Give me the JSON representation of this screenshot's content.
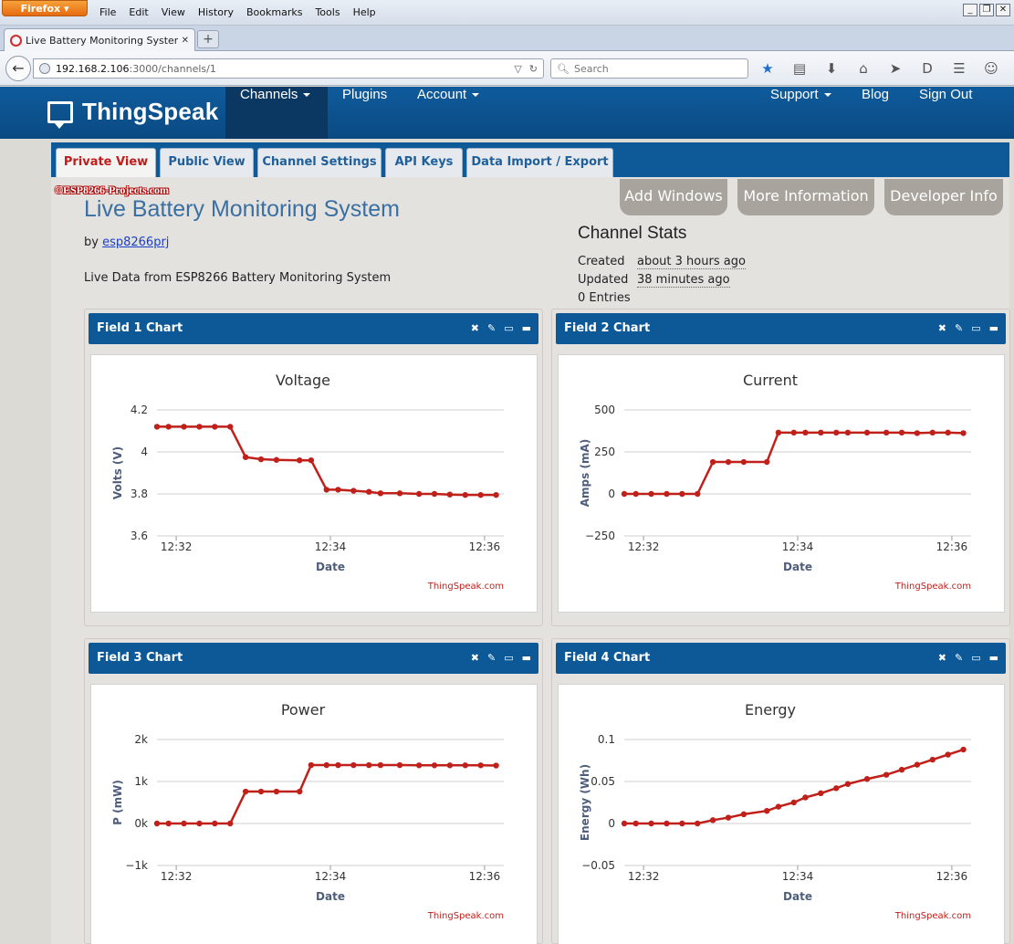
{
  "browser": {
    "app_button": "Firefox",
    "menu": [
      "File",
      "Edit",
      "View",
      "History",
      "Bookmarks",
      "Tools",
      "Help"
    ],
    "tab_title": "Live Battery Monitoring System -...",
    "new_tab_label": "+",
    "url_host": "192.168.2.106",
    "url_path": ":3000/channels/1",
    "search_placeholder": "Search"
  },
  "site": {
    "logo": "ThingSpeak",
    "nav": {
      "channels": "Channels",
      "plugins": "Plugins",
      "account": "Account",
      "support": "Support",
      "blog": "Blog",
      "signout": "Sign Out"
    },
    "subtabs": [
      "Private View",
      "Public View",
      "Channel Settings",
      "API Keys",
      "Data Import / Export"
    ]
  },
  "channel": {
    "watermark": "©ESP8266-Projects.com",
    "title": "Live Battery Monitoring System",
    "by_prefix": "by",
    "author": "esp8266prj",
    "description": "Live Data from ESP8266 Battery Monitoring System",
    "buttons": {
      "add_windows": "Add Windows",
      "more_info": "More Information",
      "developer_info": "Developer Info"
    },
    "stats": {
      "title": "Channel Stats",
      "created_label": "Created",
      "created_value": "about 3 hours ago",
      "updated_label": "Updated",
      "updated_value": "38 minutes ago",
      "entries": "0 Entries"
    }
  },
  "chart_data": [
    {
      "type": "line",
      "panel_title": "Field 1 Chart",
      "title": "Voltage",
      "xlabel": "Date",
      "ylabel": "Volts (V)",
      "credit": "ThingSpeak.com",
      "color": "#c0201a",
      "ylim": [
        3.6,
        4.2
      ],
      "yticks": [
        3.6,
        3.8,
        4.0,
        4.2
      ],
      "ytick_labels": [
        "3.6",
        "3.8",
        "4",
        "4.2"
      ],
      "xlim": [
        0,
        4.5
      ],
      "xticks": [
        0.25,
        2.25,
        4.25
      ],
      "xtick_labels": [
        "12:32",
        "12:34",
        "12:36"
      ],
      "x": [
        0,
        0.15,
        0.35,
        0.55,
        0.75,
        0.95,
        1.15,
        1.35,
        1.55,
        1.85,
        2.0,
        2.2,
        2.35,
        2.55,
        2.75,
        2.9,
        3.15,
        3.4,
        3.6,
        3.8,
        4.0,
        4.2,
        4.4
      ],
      "values": [
        4.12,
        4.12,
        4.12,
        4.12,
        4.12,
        4.12,
        3.975,
        3.965,
        3.962,
        3.96,
        3.96,
        3.82,
        3.82,
        3.815,
        3.81,
        3.803,
        3.803,
        3.8,
        3.8,
        3.797,
        3.795,
        3.795,
        3.795
      ]
    },
    {
      "type": "line",
      "panel_title": "Field 2 Chart",
      "title": "Current",
      "xlabel": "Date",
      "ylabel": "Amps (mA)",
      "credit": "ThingSpeak.com",
      "color": "#c0201a",
      "ylim": [
        -250,
        500
      ],
      "yticks": [
        -250,
        0,
        250,
        500
      ],
      "ytick_labels": [
        "−250",
        "0",
        "250",
        "500"
      ],
      "xlim": [
        0,
        4.5
      ],
      "xticks": [
        0.25,
        2.25,
        4.25
      ],
      "xtick_labels": [
        "12:32",
        "12:34",
        "12:36"
      ],
      "x": [
        0,
        0.15,
        0.35,
        0.55,
        0.75,
        0.95,
        1.15,
        1.35,
        1.55,
        1.85,
        2.0,
        2.2,
        2.35,
        2.55,
        2.75,
        2.9,
        3.15,
        3.4,
        3.6,
        3.8,
        4.0,
        4.2,
        4.4
      ],
      "values": [
        0,
        0,
        0,
        0,
        0,
        0,
        190,
        190,
        190,
        190,
        365,
        365,
        365,
        365,
        365,
        365,
        365,
        365,
        365,
        362,
        365,
        365,
        362
      ]
    },
    {
      "type": "line",
      "panel_title": "Field 3 Chart",
      "title": "Power",
      "xlabel": "Date",
      "ylabel": "P (mW)",
      "credit": "ThingSpeak.com",
      "color": "#c0201a",
      "ylim": [
        -1000,
        2000
      ],
      "yticks": [
        -1000,
        0,
        1000,
        2000
      ],
      "ytick_labels": [
        "−1k",
        "0k",
        "1k",
        "2k"
      ],
      "xlim": [
        0,
        4.5
      ],
      "xticks": [
        0.25,
        2.25,
        4.25
      ],
      "xtick_labels": [
        "12:32",
        "12:34",
        "12:36"
      ],
      "x": [
        0,
        0.15,
        0.35,
        0.55,
        0.75,
        0.95,
        1.15,
        1.35,
        1.55,
        1.85,
        2.0,
        2.2,
        2.35,
        2.55,
        2.75,
        2.9,
        3.15,
        3.4,
        3.6,
        3.8,
        4.0,
        4.2,
        4.4
      ],
      "values": [
        0,
        0,
        0,
        0,
        0,
        0,
        760,
        760,
        760,
        760,
        1390,
        1390,
        1390,
        1390,
        1390,
        1390,
        1390,
        1385,
        1385,
        1385,
        1385,
        1385,
        1380
      ]
    },
    {
      "type": "line",
      "panel_title": "Field 4 Chart",
      "title": "Energy",
      "xlabel": "Date",
      "ylabel": "Energy (Wh)",
      "credit": "ThingSpeak.com",
      "color": "#c0201a",
      "ylim": [
        -0.05,
        0.1
      ],
      "yticks": [
        -0.05,
        0,
        0.05,
        0.1
      ],
      "ytick_labels": [
        "−0.05",
        "0",
        "0.05",
        "0.1"
      ],
      "xlim": [
        0,
        4.5
      ],
      "xticks": [
        0.25,
        2.25,
        4.25
      ],
      "xtick_labels": [
        "12:32",
        "12:34",
        "12:36"
      ],
      "x": [
        0,
        0.15,
        0.35,
        0.55,
        0.75,
        0.95,
        1.15,
        1.35,
        1.55,
        1.85,
        2.0,
        2.2,
        2.35,
        2.55,
        2.75,
        2.9,
        3.15,
        3.4,
        3.6,
        3.8,
        4.0,
        4.2,
        4.4
      ],
      "values": [
        0,
        0,
        0,
        0,
        0,
        0,
        0.004,
        0.007,
        0.011,
        0.015,
        0.02,
        0.025,
        0.031,
        0.036,
        0.042,
        0.047,
        0.053,
        0.058,
        0.064,
        0.07,
        0.076,
        0.082,
        0.088
      ]
    }
  ]
}
